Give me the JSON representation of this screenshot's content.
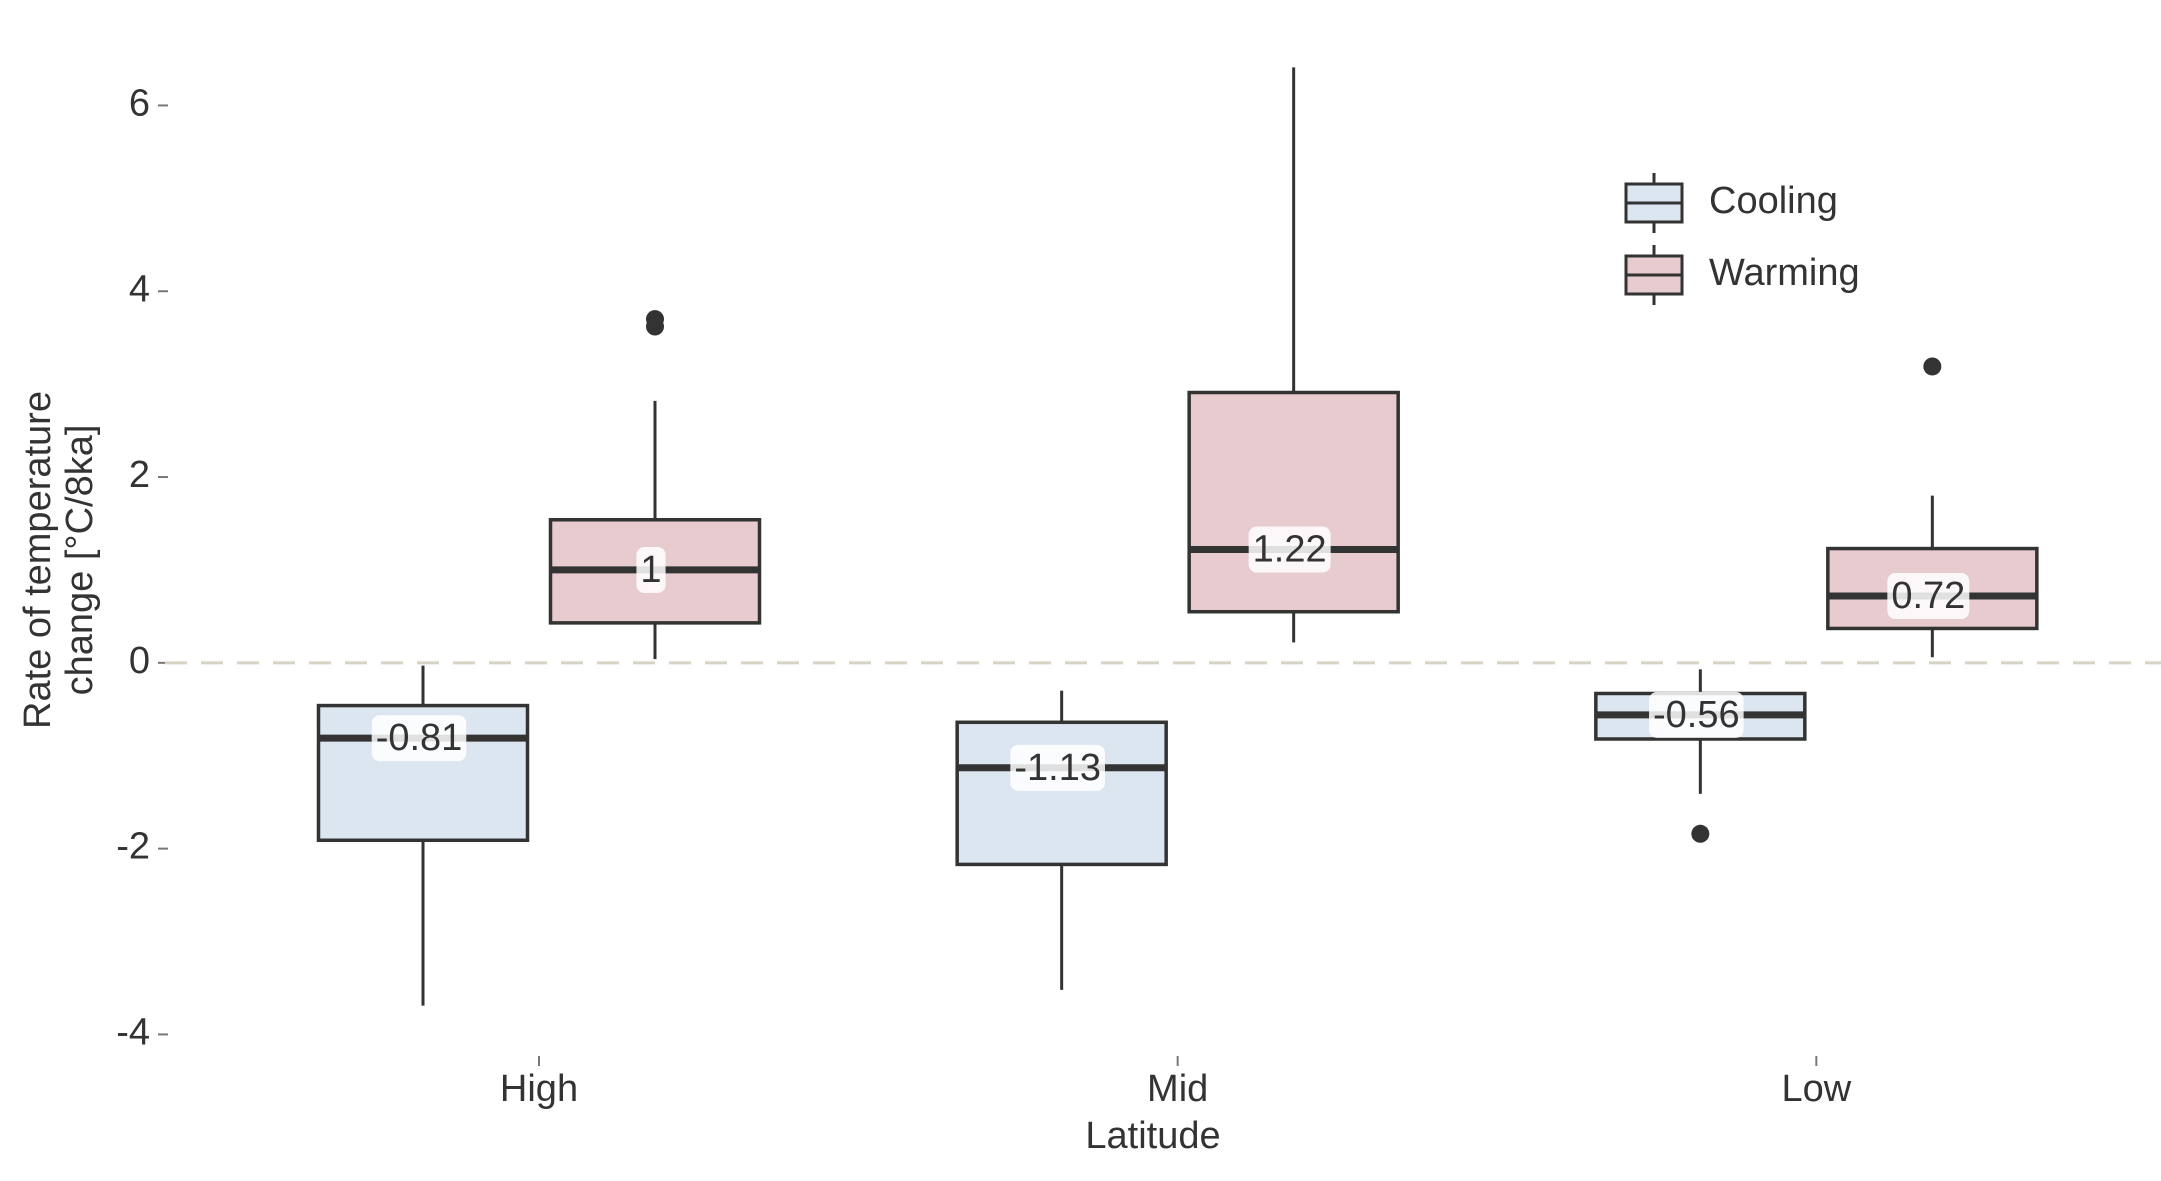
{
  "chart_data": {
    "type": "box",
    "categories": [
      "High",
      "Mid",
      "Low"
    ],
    "xlabel": "Latitude",
    "ylabel": [
      "Rate of temperature",
      "change [°C/8ka]"
    ],
    "ylim": [
      -4.2,
      6.5
    ],
    "yticks": [
      -4,
      -2,
      0,
      2,
      4,
      6
    ],
    "reference_line": 0,
    "legend_position": "upper right",
    "series": [
      {
        "name": "Cooling",
        "color": "#dce6f0",
        "whislo": [
          -3.69,
          -3.52,
          -1.41
        ],
        "q1": [
          -1.91,
          -2.17,
          -0.82
        ],
        "med": [
          -0.81,
          -1.13,
          -0.56
        ],
        "q3": [
          -0.46,
          -0.64,
          -0.33
        ],
        "whishi": [
          -0.03,
          -0.3,
          -0.07
        ],
        "fliers": [
          [],
          [],
          [
            -1.84
          ]
        ]
      },
      {
        "name": "Warming",
        "color": "#e8cbcf",
        "whislo": [
          0.04,
          0.22,
          0.06
        ],
        "q1": [
          0.43,
          0.55,
          0.37
        ],
        "med": [
          1,
          1.22,
          0.72
        ],
        "q3": [
          1.54,
          2.91,
          1.23
        ],
        "whishi": [
          2.82,
          6.41,
          1.8
        ],
        "fliers": [
          [
            3.62,
            3.7
          ],
          [],
          [
            3.19
          ]
        ]
      }
    ]
  }
}
